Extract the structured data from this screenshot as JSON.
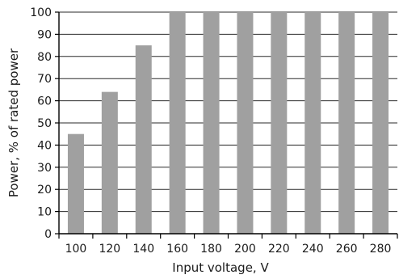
{
  "chart_data": {
    "type": "bar",
    "categories": [
      "100",
      "120",
      "140",
      "160",
      "180",
      "200",
      "220",
      "240",
      "260",
      "280"
    ],
    "values": [
      45,
      64,
      85,
      100,
      100,
      100,
      100,
      100,
      100,
      100
    ],
    "title": "",
    "xlabel": "Input voltage, V",
    "ylabel": "Power, % of rated power",
    "ylim": [
      0,
      100
    ],
    "yticks": [
      0,
      10,
      20,
      30,
      40,
      50,
      60,
      70,
      80,
      90,
      100
    ],
    "grid": "horizontal",
    "bar_color": "#a0a0a0",
    "legend": "none"
  }
}
